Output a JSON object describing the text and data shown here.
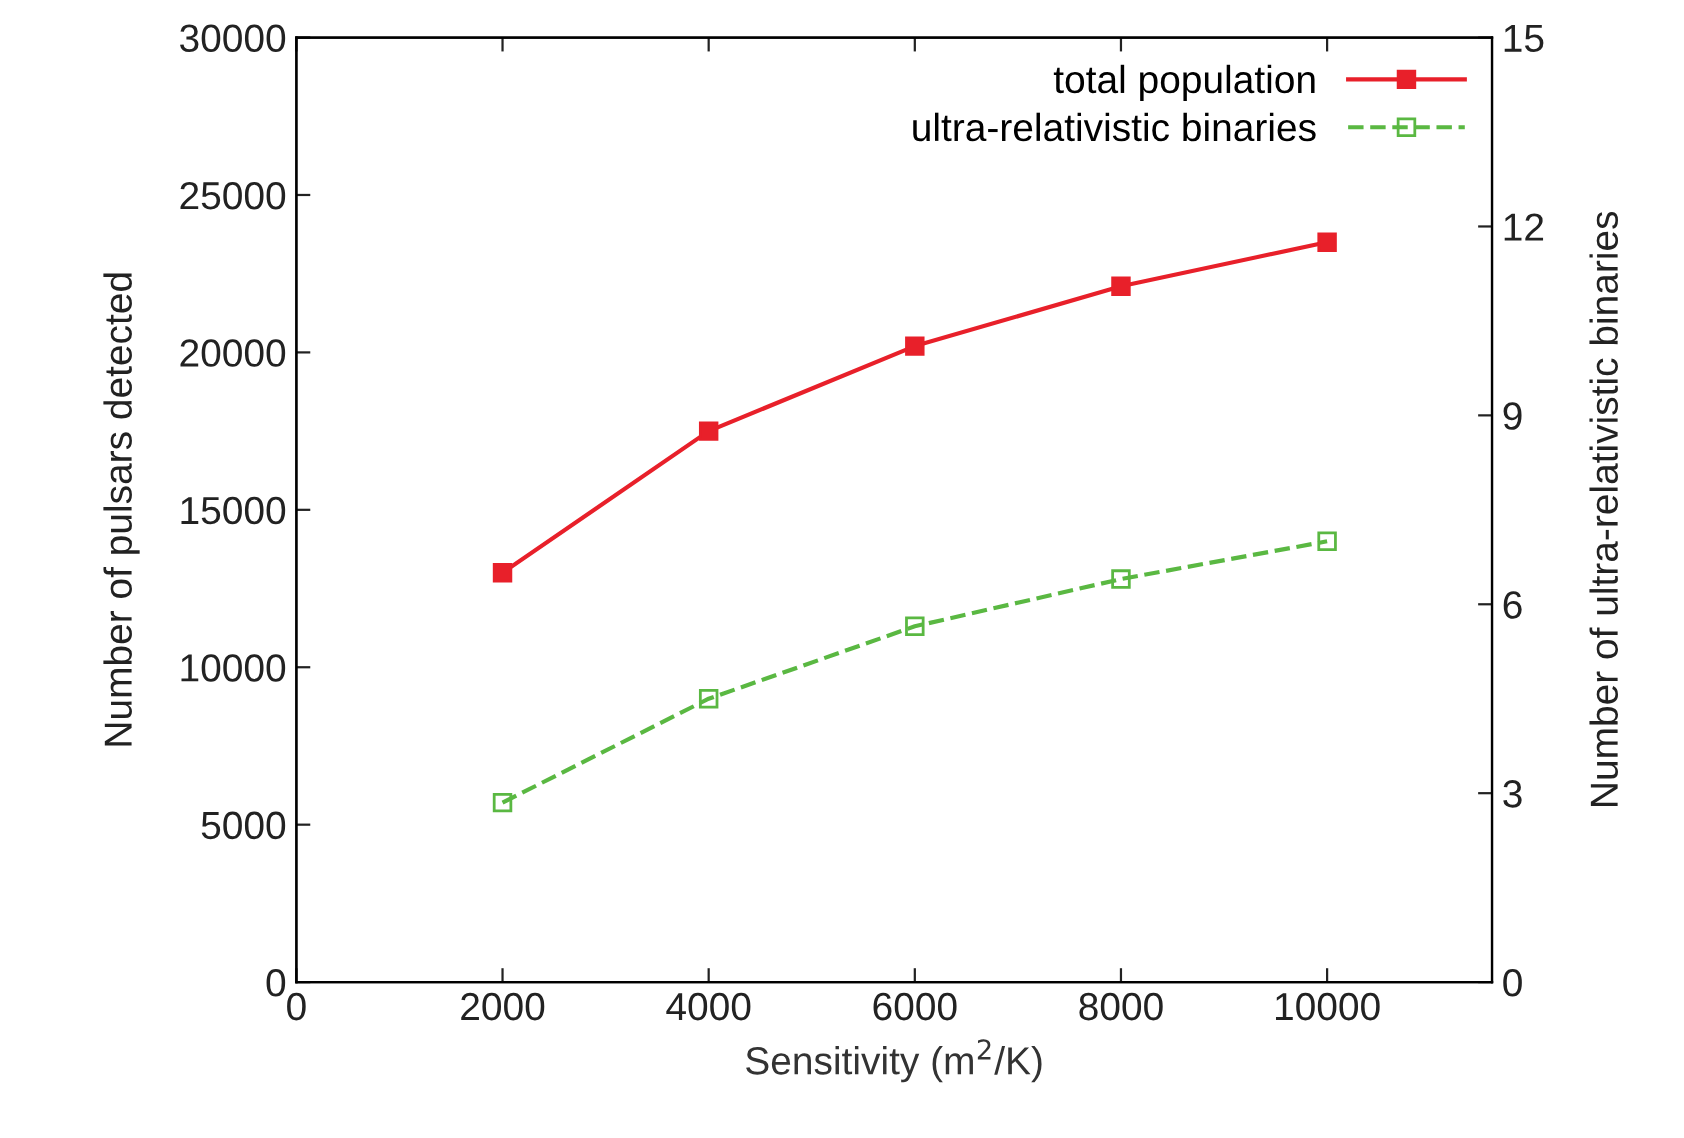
{
  "chart_data": {
    "type": "line",
    "xlabel": "Sensitivity (m$^{2}$/K)",
    "ylabel": "Number of pulsars detected",
    "y2label": "Number of ultra-relativistic binaries",
    "x": [
      2000,
      4000,
      6000,
      8000,
      10000
    ],
    "series": [
      {
        "name": "total population",
        "color": "#e8202a",
        "values": [
          13000,
          17500,
          20200,
          22100,
          23500
        ],
        "marker": "square",
        "line_style": "solid"
      },
      {
        "name": "ultra-relativistic binaries",
        "color": "#5ab842",
        "values": [
          2.85,
          4.5,
          5.65,
          6.4,
          7.0
        ],
        "axis": "y2",
        "marker": "square",
        "line_style": "dashed"
      }
    ],
    "xlim": [
      0,
      11600
    ],
    "xticks": [
      0,
      2000,
      4000,
      6000,
      8000,
      10000
    ],
    "ylim": [
      0,
      30000
    ],
    "yticks": [
      0,
      5000,
      10000,
      15000,
      20000,
      25000,
      30000
    ],
    "y2lim": [
      0,
      15
    ],
    "y2ticks": [
      0,
      3,
      6,
      9,
      12,
      15
    ],
    "grid": false,
    "legend": "top right"
  }
}
